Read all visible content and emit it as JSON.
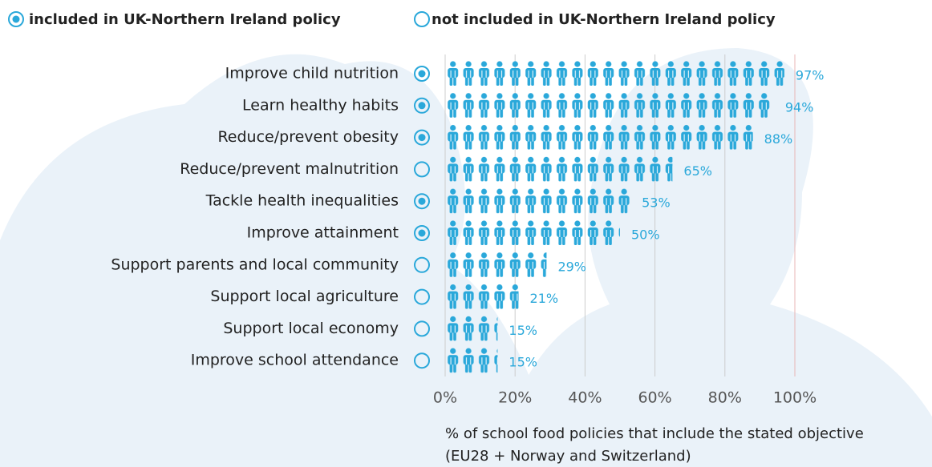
{
  "chart_data": {
    "type": "pictogram-bar",
    "legend": [
      "included in UK-Northern Ireland policy",
      "not included in UK-Northern Ireland policy"
    ],
    "categories": [
      "Improve child nutrition",
      "Learn healthy habits",
      "Reduce/prevent obesity",
      "Reduce/prevent malnutrition",
      "Tackle health inequalities",
      "Improve attainment",
      "Support parents and local community",
      "Support local agriculture",
      "Support local economy",
      "Improve school attendance"
    ],
    "values": [
      97,
      94,
      88,
      65,
      53,
      50,
      29,
      21,
      15,
      15
    ],
    "value_labels": [
      "97%",
      "94%",
      "88%",
      "65%",
      "53%",
      "50%",
      "29%",
      "21%",
      "15%",
      "15%"
    ],
    "included": [
      true,
      true,
      true,
      false,
      true,
      true,
      false,
      false,
      false,
      false
    ],
    "color": "#2aa8da",
    "xlim": [
      0,
      100
    ],
    "xticks": [
      {
        "value": 0,
        "label": "0%"
      },
      {
        "value": 20,
        "label": "20%"
      },
      {
        "value": 40,
        "label": "40%"
      },
      {
        "value": 60,
        "label": "60%"
      },
      {
        "value": 80,
        "label": "80%"
      },
      {
        "value": 100,
        "label": "100%"
      }
    ],
    "grid": true,
    "xlabel": "% of school food policies that include the stated objective",
    "xlabel_note": "(EU28 + Norway and Switzerland)"
  }
}
